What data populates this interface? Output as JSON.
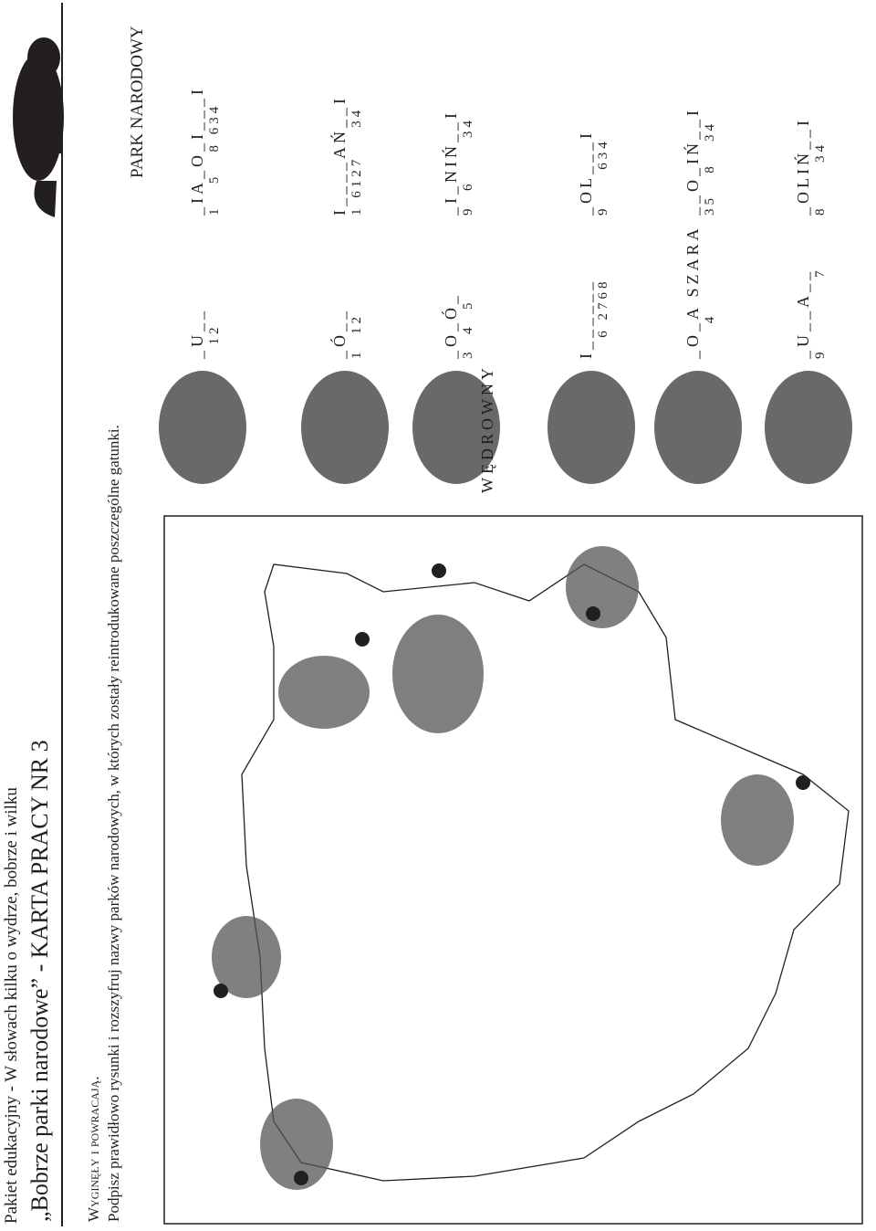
{
  "header": {
    "series": "Pakiet edukacyjny - W słowach kilku o wydrze, bobrze i wilku",
    "title": "„Bobrze parki narodowe” - KARTA PRACY NR 3"
  },
  "section": {
    "heading": "Wyginęły i powracają.",
    "instruction": "Podpisz prawidłowo rysunki i rozszyfruj nazwy parków narodowych, w których zostały reintrodukowane poszczególne gatunki."
  },
  "puzzle": {
    "heading": "PARK NARODOWY",
    "rows": [
      {
        "species": {
          "letters": "_U__",
          "numbers": "  12"
        },
        "park": {
          "letters": "_IA_O_I___I",
          "numbers": "1   5   8 634"
        }
      },
      {
        "species": {
          "letters": "_Ó__",
          "numbers": "1  12"
        },
        "park": {
          "letters": "I____AŃ__I",
          "numbers": "1 6127    34"
        }
      },
      {
        "species": {
          "letters": "_O_Ó_",
          "numbers": "3  4  5",
          "note": "WĘDROWNY"
        },
        "park": {
          "letters": "_I_NIŃ__I",
          "numbers": "9  6      34"
        }
      },
      {
        "species": {
          "letters": "I______",
          "numbers": "   6 2768"
        },
        "park": {
          "letters": "_OL___I",
          "numbers": "9     634"
        }
      },
      {
        "species": {
          "letters": "_O_A SZARA",
          "numbers": "     4"
        },
        "park": {
          "letters": "__O_IŃ__I",
          "numbers": "35   8   34"
        }
      },
      {
        "species": {
          "letters": "_U__A__",
          "numbers": "9          7"
        },
        "park": {
          "letters": "_OLIŃ__I",
          "numbers": "8      34"
        }
      }
    ]
  }
}
